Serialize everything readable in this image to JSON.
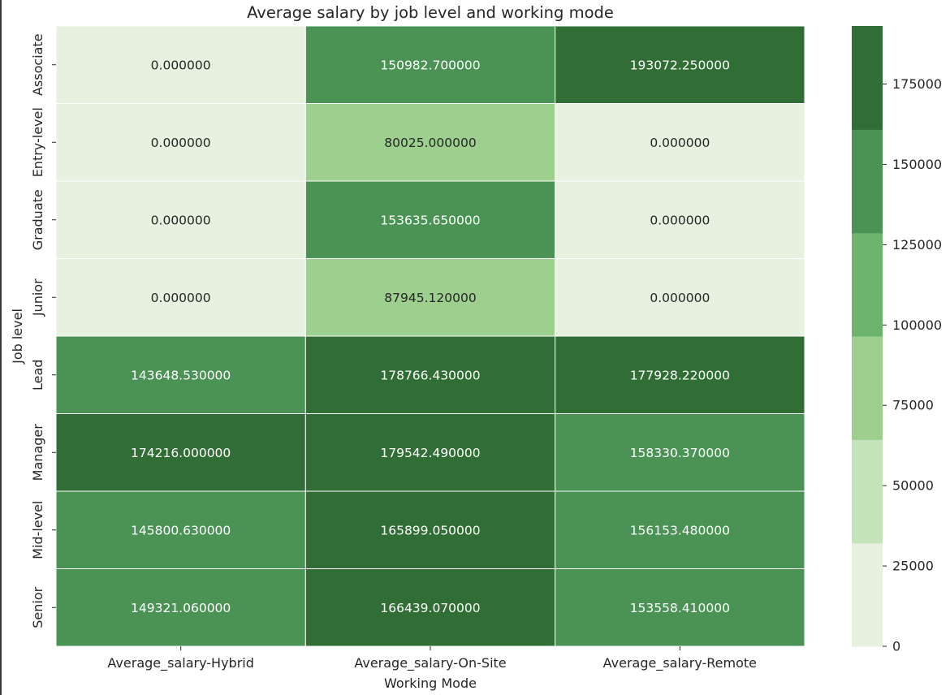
{
  "chart_data": {
    "type": "heatmap",
    "title": "Average salary by job level and working mode",
    "xlabel": "Working Mode",
    "ylabel": "Job level",
    "x_categories": [
      "Average_salary-Hybrid",
      "Average_salary-On-Site",
      "Average_salary-Remote"
    ],
    "y_categories": [
      "Associate",
      "Entry-level",
      "Graduate",
      "Junior",
      "Lead",
      "Manager",
      "Mid-level",
      "Senior"
    ],
    "values": [
      [
        0.0,
        150982.7,
        193072.25
      ],
      [
        0.0,
        80025.0,
        0.0
      ],
      [
        0.0,
        153635.65,
        0.0
      ],
      [
        0.0,
        87945.12,
        0.0
      ],
      [
        143648.53,
        178766.43,
        177928.22
      ],
      [
        174216.0,
        179542.49,
        158330.37
      ],
      [
        145800.63,
        165899.05,
        156153.48
      ],
      [
        149321.06,
        166439.07,
        153558.41
      ]
    ],
    "cell_labels": [
      [
        "0.000000",
        "150982.700000",
        "193072.250000"
      ],
      [
        "0.000000",
        "80025.000000",
        "0.000000"
      ],
      [
        "0.000000",
        "153635.650000",
        "0.000000"
      ],
      [
        "0.000000",
        "87945.120000",
        "0.000000"
      ],
      [
        "143648.530000",
        "178766.430000",
        "177928.220000"
      ],
      [
        "174216.000000",
        "179542.490000",
        "158330.370000"
      ],
      [
        "145800.630000",
        "165899.050000",
        "156153.480000"
      ],
      [
        "149321.060000",
        "166439.070000",
        "153558.410000"
      ]
    ],
    "colorbar": {
      "range": [
        0,
        193072.25
      ],
      "bins": 6,
      "colors": [
        "#e6f1df",
        "#c4e3bb",
        "#9dcf8f",
        "#6db26d",
        "#4a9355",
        "#316e35"
      ],
      "ticks": [
        0,
        25000,
        50000,
        75000,
        100000,
        125000,
        150000,
        175000
      ]
    },
    "text_colors": {
      "dark": "#262626",
      "light": "#ffffff"
    },
    "grid_color": "#ffffff"
  }
}
